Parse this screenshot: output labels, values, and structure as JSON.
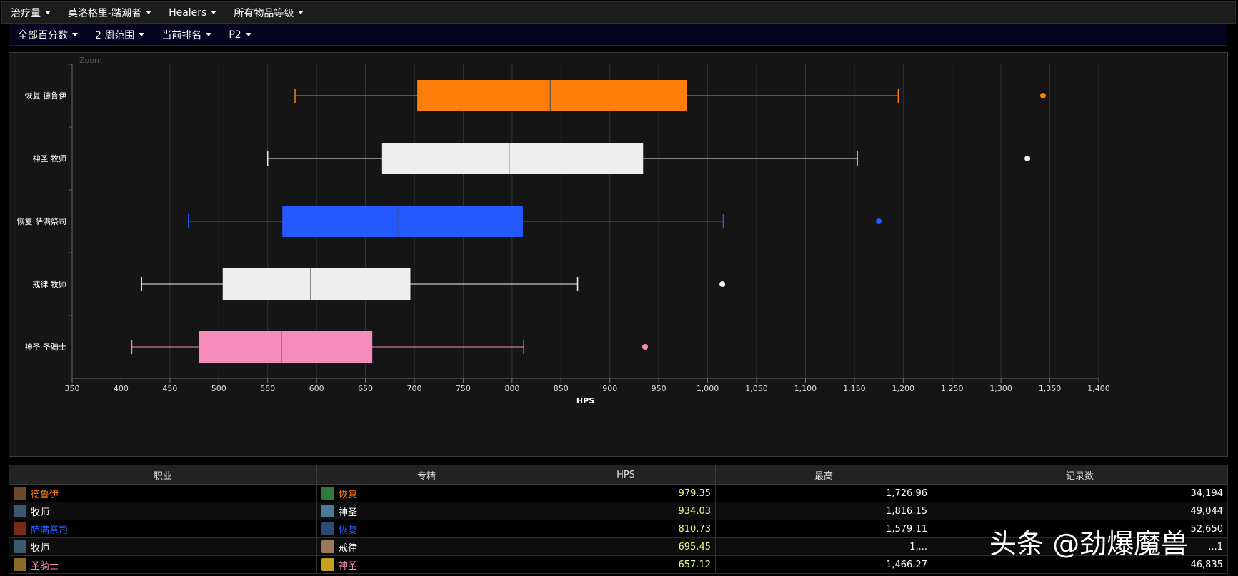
{
  "filters_top": [
    {
      "label": "治疗量"
    },
    {
      "label": "莫洛格里-踏潮者"
    },
    {
      "label": "Healers"
    },
    {
      "label": "所有物品等级"
    }
  ],
  "filters_bottom": [
    {
      "label": "全部百分数"
    },
    {
      "label": "2 周范围"
    },
    {
      "label": "当前排名"
    },
    {
      "label": "P2"
    }
  ],
  "zoom_label": "Zoom",
  "chart_data": {
    "type": "boxplot",
    "orientation": "horizontal",
    "xlabel": "HPS",
    "xlim": [
      350,
      1400
    ],
    "x_ticks": [
      "350",
      "400",
      "450",
      "500",
      "550",
      "600",
      "650",
      "700",
      "750",
      "800",
      "850",
      "900",
      "950",
      "1,000",
      "1,050",
      "1,100",
      "1,150",
      "1,200",
      "1,250",
      "1,300",
      "1,350",
      "1,400"
    ],
    "grid": true,
    "series": [
      {
        "name": "恢复 德鲁伊",
        "color": "#ff7d0a",
        "min": 578,
        "q1": 703,
        "median": 839,
        "q3": 979,
        "max": 1195,
        "outlier": 1343
      },
      {
        "name": "神圣 牧师",
        "color": "#eeeeee",
        "min": 550,
        "q1": 667,
        "median": 797,
        "q3": 934,
        "max": 1153,
        "outlier": 1327
      },
      {
        "name": "恢复 萨满祭司",
        "color": "#2459ff",
        "min": 469,
        "q1": 565,
        "median": 683,
        "q3": 811,
        "max": 1016,
        "outlier": 1175
      },
      {
        "name": "戒律 牧师",
        "color": "#eeeeee",
        "min": 421,
        "q1": 504,
        "median": 594,
        "q3": 696,
        "max": 867,
        "outlier": 1015
      },
      {
        "name": "神圣 圣骑士",
        "color": "#f58cba",
        "min": 411,
        "q1": 480,
        "median": 564,
        "q3": 657,
        "max": 812,
        "outlier": 936
      }
    ]
  },
  "table": {
    "headers": [
      "职业",
      "专精",
      "HPS",
      "最高",
      "记录数"
    ],
    "rows": [
      {
        "class": "德鲁伊",
        "class_color": "#ff7d0a",
        "spec": "恢复",
        "spec_color": "#ff7d0a",
        "hps": "979.35",
        "max": "1,726.96",
        "count": "34,194",
        "class_icon": "druid-icon",
        "spec_icon": "leaf-icon"
      },
      {
        "class": "牧师",
        "class_color": "#ffffff",
        "spec": "神圣",
        "spec_color": "#ffffff",
        "hps": "934.03",
        "max": "1,816.15",
        "count": "49,044",
        "class_icon": "priest-icon",
        "spec_icon": "holy-icon"
      },
      {
        "class": "萨满祭司",
        "class_color": "#2459ff",
        "spec": "恢复",
        "spec_color": "#2459ff",
        "hps": "810.73",
        "max": "1,579.11",
        "count": "52,650",
        "class_icon": "shaman-icon",
        "spec_icon": "wave-icon"
      },
      {
        "class": "牧师",
        "class_color": "#ffffff",
        "spec": "戒律",
        "spec_color": "#ffffff",
        "hps": "695.45",
        "max": "1,...",
        "count": "...1",
        "class_icon": "priest-icon",
        "spec_icon": "discipline-icon"
      },
      {
        "class": "圣骑士",
        "class_color": "#f58cba",
        "spec": "神圣",
        "spec_color": "#f58cba",
        "hps": "657.12",
        "max": "1,466.27",
        "count": "46,835",
        "class_icon": "paladin-icon",
        "spec_icon": "light-icon"
      }
    ]
  },
  "watermark": "头条 @劲爆魔兽"
}
